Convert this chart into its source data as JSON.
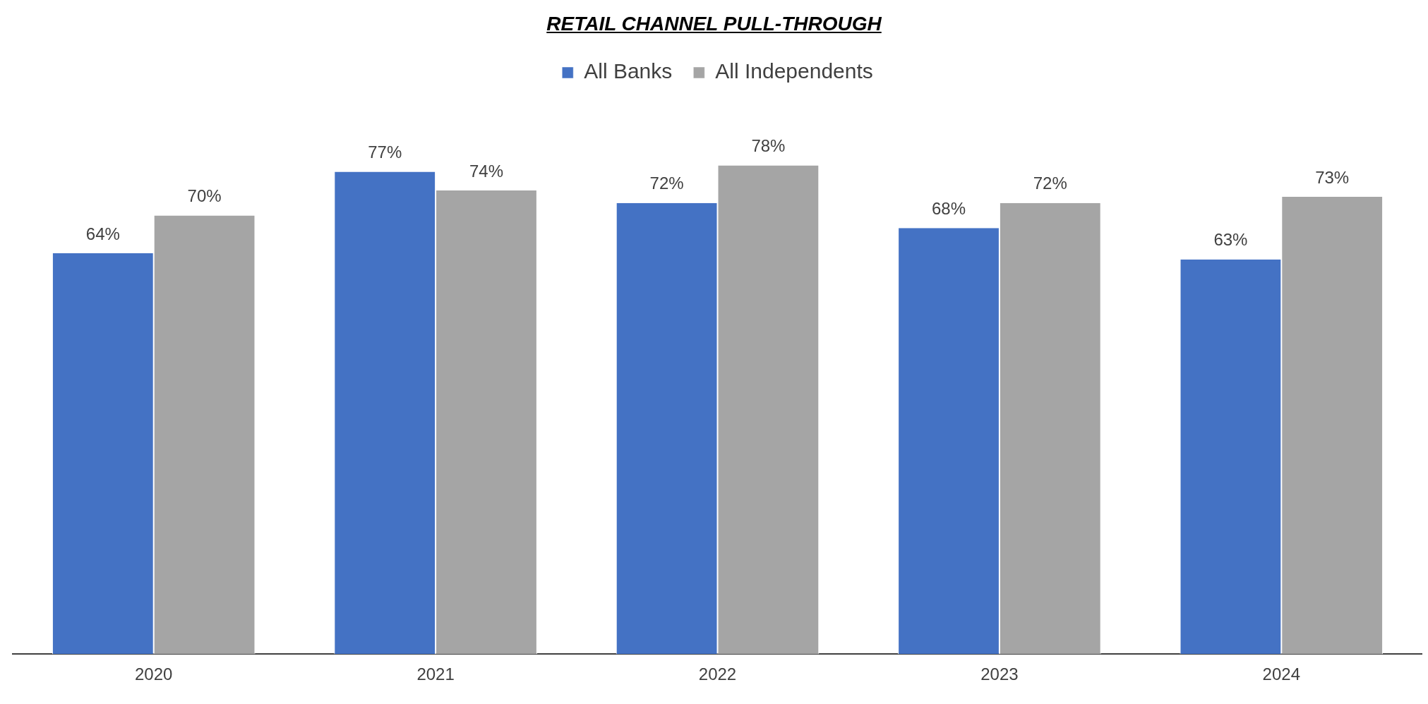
{
  "chart_data": {
    "type": "bar",
    "title": "RETAIL CHANNEL PULL-THROUGH",
    "categories": [
      "2020",
      "2021",
      "2022",
      "2023",
      "2024"
    ],
    "series": [
      {
        "name": "All Banks",
        "color": "#4472c4",
        "values": [
          64,
          77,
          72,
          68,
          63
        ],
        "value_labels": [
          "64%",
          "77%",
          "72%",
          "68%",
          "63%"
        ]
      },
      {
        "name": "All Independents",
        "color": "#a5a5a5",
        "values": [
          70,
          74,
          78,
          72,
          73
        ],
        "value_labels": [
          "70%",
          "74%",
          "78%",
          "72%",
          "73%"
        ]
      }
    ],
    "tick_labels": "x",
    "legend": "top"
  }
}
